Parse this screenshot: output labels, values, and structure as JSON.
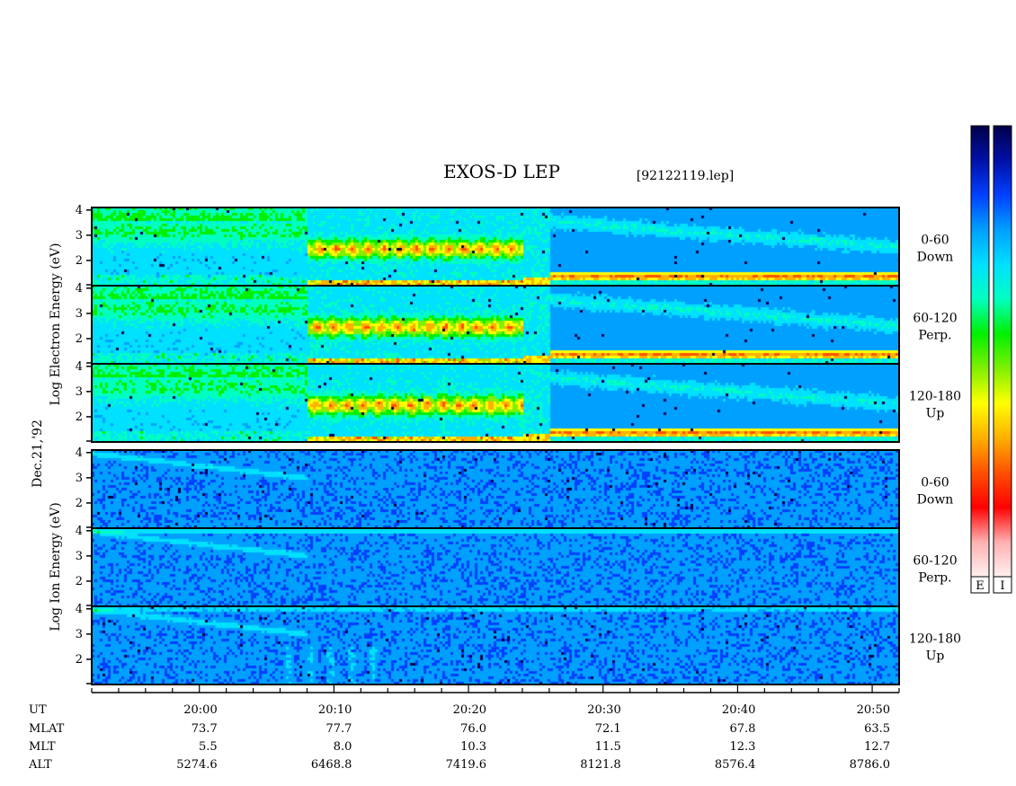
{
  "title": "EXOS-D LEP",
  "file_label": "[92122119.lep]",
  "date_label": "Dec.21,'92",
  "colormap": [
    "#00004a",
    "#0010a8",
    "#0040ff",
    "#00a0ff",
    "#00e0ff",
    "#00ffc0",
    "#00f000",
    "#80f000",
    "#ffff00",
    "#ffb000",
    "#ff5000",
    "#ff0000",
    "#ffb0b0",
    "#fff0f0"
  ],
  "colorbars": [
    {
      "label": "E"
    },
    {
      "label": "I"
    }
  ],
  "electron": {
    "ylabel_parts": [
      "Log",
      "Electron",
      "Energy",
      "(eV)"
    ],
    "panels": [
      {
        "label_top": "0-60",
        "label_bottom": "Down",
        "yticks": [
          "4",
          "3",
          "2"
        ]
      },
      {
        "label_top": "60-120",
        "label_bottom": "Perp.",
        "yticks": [
          "4",
          "3",
          "2"
        ]
      },
      {
        "label_top": "120-180",
        "label_bottom": "Up",
        "yticks": [
          "4",
          "3",
          "2"
        ]
      }
    ]
  },
  "ion": {
    "ylabel_parts": [
      "Log",
      "Ion",
      "Energy",
      "(eV)"
    ],
    "panels": [
      {
        "label_top": "0-60",
        "label_bottom": "Down",
        "yticks": [
          "4",
          "3",
          "2"
        ]
      },
      {
        "label_top": "60-120",
        "label_bottom": "Perp.",
        "yticks": [
          "4",
          "3",
          "2"
        ]
      },
      {
        "label_top": "120-180",
        "label_bottom": "Up",
        "yticks": [
          "4",
          "3",
          "2"
        ]
      }
    ]
  },
  "chart_data": {
    "type": "heatmap",
    "title": "EXOS-D LEP",
    "x": {
      "name": "UT",
      "range": [
        "19:52",
        "20:52"
      ],
      "ticks": [
        "20:00",
        "20:10",
        "20:20",
        "20:30",
        "20:40",
        "20:50"
      ]
    },
    "y": {
      "label": "Log Energy (eV)",
      "range": [
        1,
        4.1
      ],
      "ticks": [
        "2",
        "3",
        "4"
      ]
    },
    "ephemeris": [
      {
        "name": "UT",
        "values": [
          "20:00",
          "20:10",
          "20:20",
          "20:30",
          "20:40",
          "20:50"
        ]
      },
      {
        "name": "MLAT",
        "values": [
          "73.7",
          "77.7",
          "76.0",
          "72.1",
          "67.8",
          "63.5"
        ]
      },
      {
        "name": "MLT",
        "values": [
          "5.5",
          "8.0",
          "10.3",
          "11.5",
          "12.3",
          "12.7"
        ]
      },
      {
        "name": "ALT",
        "values": [
          "5274.6",
          "6468.8",
          "7419.6",
          "8121.8",
          "8576.4",
          "8786.0"
        ]
      }
    ]
  }
}
